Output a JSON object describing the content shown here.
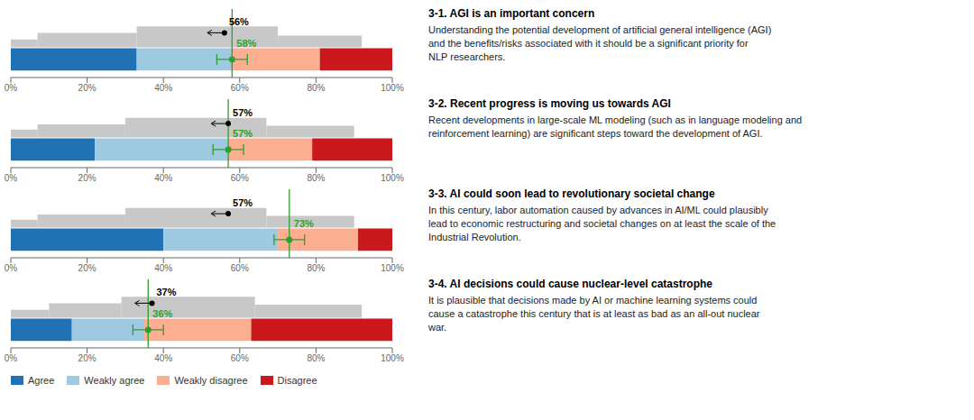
{
  "chart_data": [
    {
      "type": "bar",
      "orientation": "horizontal",
      "stacked": true,
      "grid": false,
      "tick_labels": "x",
      "title": "3-1. AGI is an important concern",
      "subtitle": "Understanding the potential development of artificial general intelligence (AGI)\nand the benefits/risks associated with it should be a significant priority for\nNLP researchers.",
      "series": [
        {
          "name": "Agree",
          "color": "#2171b5",
          "values": [
            33
          ]
        },
        {
          "name": "Weakly agree",
          "color": "#9ecae1",
          "values": [
            25
          ]
        },
        {
          "name": "Weakly disagree",
          "color": "#fcae91",
          "values": [
            23
          ]
        },
        {
          "name": "Disagree",
          "color": "#cb181d",
          "values": [
            19
          ]
        }
      ],
      "histogram": {
        "bins": [
          0,
          7,
          33,
          70,
          92
        ],
        "values": [
          0.3,
          0.55,
          0.8,
          0.45
        ],
        "color": "#c8c8c8"
      },
      "annotations": [
        {
          "x": 56,
          "text": "56%",
          "color": "#000000",
          "marker": "o"
        },
        {
          "x": 58,
          "text": "58%",
          "color": "#2ca02c",
          "marker": "o",
          "error": 4,
          "line_style": "solid"
        }
      ],
      "xlim": [
        0,
        100
      ],
      "xticks": [
        {
          "value": 0,
          "label": "0%"
        },
        {
          "value": 20,
          "label": "20%"
        },
        {
          "value": 40,
          "label": "40%"
        },
        {
          "value": 60,
          "label": "60%"
        },
        {
          "value": 80,
          "label": "80%"
        },
        {
          "value": 100,
          "label": "100%"
        }
      ]
    },
    {
      "type": "bar",
      "orientation": "horizontal",
      "stacked": true,
      "grid": false,
      "tick_labels": "x",
      "title": "3-2. Recent progress is moving us towards AGI",
      "subtitle": "Recent developments in large-scale ML modeling (such as in language modeling and\nreinforcement learning) are significant steps toward the development of AGI.",
      "series": [
        {
          "name": "Agree",
          "color": "#2171b5",
          "values": [
            22
          ]
        },
        {
          "name": "Weakly agree",
          "color": "#9ecae1",
          "values": [
            35
          ]
        },
        {
          "name": "Weakly disagree",
          "color": "#fcae91",
          "values": [
            22
          ]
        },
        {
          "name": "Disagree",
          "color": "#cb181d",
          "values": [
            21
          ]
        }
      ],
      "histogram": {
        "bins": [
          0,
          7,
          30,
          67,
          90
        ],
        "values": [
          0.3,
          0.5,
          0.75,
          0.45
        ],
        "color": "#c8c8c8"
      },
      "annotations": [
        {
          "x": 57,
          "text": "57%",
          "color": "#000000",
          "marker": "o"
        },
        {
          "x": 57,
          "text": "57%",
          "color": "#2ca02c",
          "marker": "o",
          "error": 4,
          "line_style": "solid"
        }
      ],
      "xlim": [
        0,
        100
      ],
      "xticks": [
        {
          "value": 0,
          "label": "0%"
        },
        {
          "value": 20,
          "label": "20%"
        },
        {
          "value": 40,
          "label": "40%"
        },
        {
          "value": 60,
          "label": "60%"
        },
        {
          "value": 80,
          "label": "80%"
        },
        {
          "value": 100,
          "label": "100%"
        }
      ]
    },
    {
      "type": "bar",
      "orientation": "horizontal",
      "stacked": true,
      "grid": false,
      "tick_labels": "x",
      "title": "3-3. AI could soon lead to revolutionary societal change",
      "subtitle": "In this century, labor automation caused by advances in AI/ML could plausibly\nlead to economic restructuring and societal changes on at least the scale of the\nIndustrial Revolution.",
      "series": [
        {
          "name": "Agree",
          "color": "#2171b5",
          "values": [
            40
          ]
        },
        {
          "name": "Weakly agree",
          "color": "#9ecae1",
          "values": [
            30
          ]
        },
        {
          "name": "Weakly disagree",
          "color": "#fcae91",
          "values": [
            21
          ]
        },
        {
          "name": "Disagree",
          "color": "#cb181d",
          "values": [
            9
          ]
        }
      ],
      "histogram": {
        "bins": [
          0,
          7,
          30,
          67,
          90
        ],
        "values": [
          0.3,
          0.5,
          0.75,
          0.45
        ],
        "color": "#c8c8c8"
      },
      "annotations": [
        {
          "x": 57,
          "text": "57%",
          "color": "#000000",
          "marker": "o"
        },
        {
          "x": 73,
          "text": "73%",
          "color": "#2ca02c",
          "marker": "o",
          "error": 4,
          "line_style": "solid"
        }
      ],
      "xlim": [
        0,
        100
      ],
      "xticks": [
        {
          "value": 0,
          "label": "0%"
        },
        {
          "value": 20,
          "label": "20%"
        },
        {
          "value": 40,
          "label": "40%"
        },
        {
          "value": 60,
          "label": "60%"
        },
        {
          "value": 80,
          "label": "80%"
        },
        {
          "value": 100,
          "label": "100%"
        }
      ]
    },
    {
      "type": "bar",
      "orientation": "horizontal",
      "stacked": true,
      "grid": false,
      "tick_labels": "x",
      "legend": "bottom",
      "title": "3-4. AI decisions could cause nuclear-level catastrophe",
      "subtitle": "It is plausible that decisions made by AI or machine learning systems could\ncause a catastrophe this century that is at least as bad as an all-out nuclear\nwar.",
      "series": [
        {
          "name": "Agree",
          "color": "#2171b5",
          "values": [
            16
          ]
        },
        {
          "name": "Weakly agree",
          "color": "#9ecae1",
          "values": [
            19
          ]
        },
        {
          "name": "Weakly disagree",
          "color": "#fcae91",
          "values": [
            28
          ]
        },
        {
          "name": "Disagree",
          "color": "#cb181d",
          "values": [
            37
          ]
        }
      ],
      "histogram": {
        "bins": [
          0,
          10,
          29,
          64,
          92
        ],
        "values": [
          0.3,
          0.55,
          0.8,
          0.5
        ],
        "color": "#c8c8c8"
      },
      "annotations": [
        {
          "x": 37,
          "text": "37%",
          "color": "#000000",
          "marker": "o"
        },
        {
          "x": 36,
          "text": "36%",
          "color": "#2ca02c",
          "marker": "o",
          "error": 4,
          "line_style": "solid"
        }
      ],
      "xlim": [
        0,
        100
      ],
      "xticks": [
        {
          "value": 0,
          "label": "0%"
        },
        {
          "value": 20,
          "label": "20%"
        },
        {
          "value": 40,
          "label": "40%"
        },
        {
          "value": 60,
          "label": "60%"
        },
        {
          "value": 80,
          "label": "80%"
        },
        {
          "value": 100,
          "label": "100%"
        }
      ]
    }
  ]
}
